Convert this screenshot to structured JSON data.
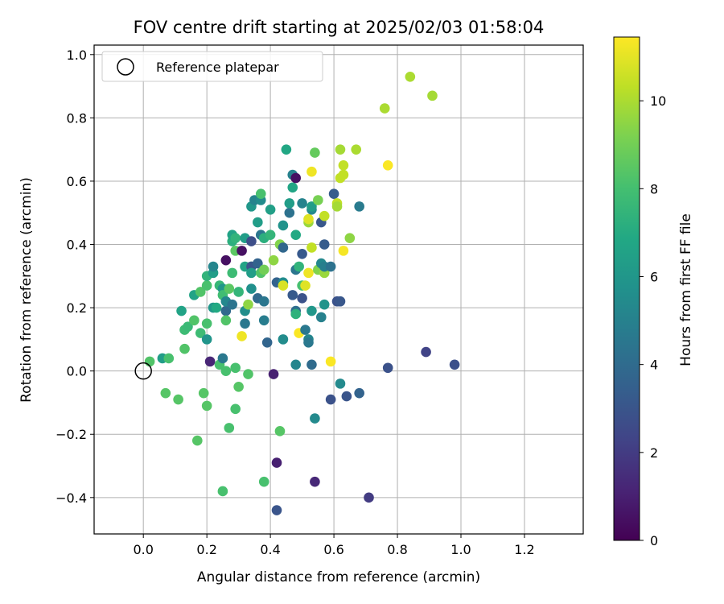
{
  "chart_data": {
    "type": "scatter",
    "title": "FOV centre drift starting at 2025/02/03 01:58:04",
    "xlabel": "Angular distance from reference (arcmin)",
    "ylabel": "Rotation from reference (arcmin)",
    "xlim": [
      -0.155,
      1.385
    ],
    "ylim": [
      -0.515,
      1.03
    ],
    "xticks": [
      "0.0",
      "0.2",
      "0.4",
      "0.6",
      "0.8",
      "1.0",
      "1.2"
    ],
    "yticks": [
      "−0.4",
      "−0.2",
      "0.0",
      "0.2",
      "0.4",
      "0.6",
      "0.8",
      "1.0"
    ],
    "grid": true,
    "legend": {
      "position": "upper-left",
      "entries": [
        "Reference platepar"
      ]
    },
    "reference_point": {
      "x": 0.0,
      "y": 0.0
    },
    "colorbar": {
      "label": "Hours from first FF file",
      "colormap": "viridis",
      "range": [
        0,
        11.45
      ],
      "ticks": [
        "0",
        "2",
        "4",
        "6",
        "8",
        "10"
      ]
    },
    "points": [
      {
        "x": 0.02,
        "y": 0.03,
        "h": 8.3
      },
      {
        "x": 0.06,
        "y": 0.04,
        "h": 6.3
      },
      {
        "x": 0.08,
        "y": 0.04,
        "h": 8.1
      },
      {
        "x": 0.07,
        "y": -0.07,
        "h": 8.4
      },
      {
        "x": 0.11,
        "y": -0.09,
        "h": 8.4
      },
      {
        "x": 0.13,
        "y": 0.07,
        "h": 8.3
      },
      {
        "x": 0.12,
        "y": 0.19,
        "h": 6.6
      },
      {
        "x": 0.13,
        "y": 0.13,
        "h": 7.8
      },
      {
        "x": 0.14,
        "y": 0.14,
        "h": 7.7
      },
      {
        "x": 0.16,
        "y": 0.24,
        "h": 6.6
      },
      {
        "x": 0.16,
        "y": 0.16,
        "h": 8.3
      },
      {
        "x": 0.17,
        "y": -0.22,
        "h": 8.4
      },
      {
        "x": 0.18,
        "y": 0.25,
        "h": 8.3
      },
      {
        "x": 0.18,
        "y": 0.12,
        "h": 7.8
      },
      {
        "x": 0.19,
        "y": -0.07,
        "h": 8.4
      },
      {
        "x": 0.2,
        "y": -0.11,
        "h": 8.4
      },
      {
        "x": 0.2,
        "y": 0.1,
        "h": 5.9
      },
      {
        "x": 0.2,
        "y": 0.15,
        "h": 8.1
      },
      {
        "x": 0.2,
        "y": 0.27,
        "h": 8.1
      },
      {
        "x": 0.2,
        "y": 0.3,
        "h": 7.4
      },
      {
        "x": 0.21,
        "y": 0.03,
        "h": 1.2
      },
      {
        "x": 0.22,
        "y": 0.2,
        "h": 6.0
      },
      {
        "x": 0.22,
        "y": 0.31,
        "h": 6.3
      },
      {
        "x": 0.22,
        "y": 0.33,
        "h": 5.2
      },
      {
        "x": 0.23,
        "y": 0.2,
        "h": 6.9
      },
      {
        "x": 0.24,
        "y": 0.27,
        "h": 7.6
      },
      {
        "x": 0.24,
        "y": 0.02,
        "h": 8.1
      },
      {
        "x": 0.25,
        "y": 0.04,
        "h": 4.6
      },
      {
        "x": 0.25,
        "y": 0.26,
        "h": 6.0
      },
      {
        "x": 0.25,
        "y": 0.24,
        "h": 7.9
      },
      {
        "x": 0.25,
        "y": -0.38,
        "h": 8.1
      },
      {
        "x": 0.26,
        "y": 0.35,
        "h": 0.5
      },
      {
        "x": 0.26,
        "y": 0.19,
        "h": 3.9
      },
      {
        "x": 0.26,
        "y": 0.22,
        "h": 5.3
      },
      {
        "x": 0.26,
        "y": 0.16,
        "h": 8.3
      },
      {
        "x": 0.26,
        "y": 0.0,
        "h": 8.1
      },
      {
        "x": 0.27,
        "y": -0.18,
        "h": 8.1
      },
      {
        "x": 0.27,
        "y": 0.26,
        "h": 8.5
      },
      {
        "x": 0.28,
        "y": 0.41,
        "h": 7.2
      },
      {
        "x": 0.28,
        "y": 0.43,
        "h": 6.6
      },
      {
        "x": 0.28,
        "y": 0.31,
        "h": 7.8
      },
      {
        "x": 0.28,
        "y": 0.21,
        "h": 4.4
      },
      {
        "x": 0.29,
        "y": 0.38,
        "h": 8.5
      },
      {
        "x": 0.29,
        "y": 0.42,
        "h": 7.4
      },
      {
        "x": 0.29,
        "y": 0.01,
        "h": 8.1
      },
      {
        "x": 0.29,
        "y": -0.12,
        "h": 8.1
      },
      {
        "x": 0.3,
        "y": 0.25,
        "h": 7.5
      },
      {
        "x": 0.3,
        "y": -0.05,
        "h": 8.4
      },
      {
        "x": 0.31,
        "y": 0.38,
        "h": 0.5
      },
      {
        "x": 0.31,
        "y": 0.11,
        "h": 11.2
      },
      {
        "x": 0.32,
        "y": 0.15,
        "h": 4.6
      },
      {
        "x": 0.32,
        "y": 0.19,
        "h": 5.6
      },
      {
        "x": 0.32,
        "y": 0.33,
        "h": 6.6
      },
      {
        "x": 0.32,
        "y": 0.42,
        "h": 6.3
      },
      {
        "x": 0.33,
        "y": 0.21,
        "h": 9.5
      },
      {
        "x": 0.33,
        "y": -0.01,
        "h": 8.3
      },
      {
        "x": 0.34,
        "y": 0.41,
        "h": 2.7
      },
      {
        "x": 0.34,
        "y": 0.33,
        "h": 7.8
      },
      {
        "x": 0.34,
        "y": 0.33,
        "h": 3.0
      },
      {
        "x": 0.34,
        "y": 0.52,
        "h": 6.0
      },
      {
        "x": 0.34,
        "y": 0.31,
        "h": 6.3
      },
      {
        "x": 0.34,
        "y": 0.26,
        "h": 5.7
      },
      {
        "x": 0.35,
        "y": 0.54,
        "h": 5.1
      },
      {
        "x": 0.36,
        "y": 0.47,
        "h": 6.3
      },
      {
        "x": 0.36,
        "y": 0.23,
        "h": 3.9
      },
      {
        "x": 0.36,
        "y": 0.34,
        "h": 3.6
      },
      {
        "x": 0.37,
        "y": 0.43,
        "h": 4.5
      },
      {
        "x": 0.37,
        "y": 0.31,
        "h": 8.3
      },
      {
        "x": 0.37,
        "y": 0.54,
        "h": 5.5
      },
      {
        "x": 0.37,
        "y": 0.56,
        "h": 8.1
      },
      {
        "x": 0.38,
        "y": 0.42,
        "h": 7.2
      },
      {
        "x": 0.38,
        "y": 0.22,
        "h": 4.5
      },
      {
        "x": 0.38,
        "y": 0.16,
        "h": 4.8
      },
      {
        "x": 0.38,
        "y": 0.32,
        "h": 9.0
      },
      {
        "x": 0.38,
        "y": -0.35,
        "h": 8.1
      },
      {
        "x": 0.39,
        "y": 0.09,
        "h": 3.7
      },
      {
        "x": 0.4,
        "y": 0.51,
        "h": 6.4
      },
      {
        "x": 0.4,
        "y": 0.43,
        "h": 7.5
      },
      {
        "x": 0.41,
        "y": 0.35,
        "h": 9.5
      },
      {
        "x": 0.41,
        "y": -0.01,
        "h": 1.0
      },
      {
        "x": 0.42,
        "y": -0.29,
        "h": 1.0
      },
      {
        "x": 0.42,
        "y": -0.44,
        "h": 3.0
      },
      {
        "x": 0.42,
        "y": 0.28,
        "h": 3.6
      },
      {
        "x": 0.43,
        "y": 0.4,
        "h": 9.3
      },
      {
        "x": 0.43,
        "y": -0.19,
        "h": 8.4
      },
      {
        "x": 0.44,
        "y": 0.28,
        "h": 5.5
      },
      {
        "x": 0.44,
        "y": 0.27,
        "h": 10.8
      },
      {
        "x": 0.44,
        "y": 0.1,
        "h": 5.5
      },
      {
        "x": 0.44,
        "y": 0.46,
        "h": 5.8
      },
      {
        "x": 0.44,
        "y": 0.39,
        "h": 3.8
      },
      {
        "x": 0.45,
        "y": 0.7,
        "h": 6.8
      },
      {
        "x": 0.46,
        "y": 0.5,
        "h": 4.3
      },
      {
        "x": 0.46,
        "y": 0.53,
        "h": 6.3
      },
      {
        "x": 0.47,
        "y": 0.58,
        "h": 6.7
      },
      {
        "x": 0.47,
        "y": 0.24,
        "h": 3.2
      },
      {
        "x": 0.47,
        "y": 0.62,
        "h": 5.0
      },
      {
        "x": 0.48,
        "y": 0.61,
        "h": 0.5
      },
      {
        "x": 0.48,
        "y": 0.43,
        "h": 6.9
      },
      {
        "x": 0.48,
        "y": 0.32,
        "h": 4.5
      },
      {
        "x": 0.48,
        "y": 0.19,
        "h": 4.1
      },
      {
        "x": 0.48,
        "y": 0.18,
        "h": 7.3
      },
      {
        "x": 0.48,
        "y": 0.02,
        "h": 5.2
      },
      {
        "x": 0.49,
        "y": 0.12,
        "h": 11.4
      },
      {
        "x": 0.49,
        "y": 0.33,
        "h": 7.4
      },
      {
        "x": 0.5,
        "y": 0.37,
        "h": 3.2
      },
      {
        "x": 0.5,
        "y": 0.23,
        "h": 2.9
      },
      {
        "x": 0.5,
        "y": 0.27,
        "h": 8.1
      },
      {
        "x": 0.5,
        "y": 0.53,
        "h": 5.1
      },
      {
        "x": 0.51,
        "y": 0.27,
        "h": 10.9
      },
      {
        "x": 0.51,
        "y": 0.13,
        "h": 4.6
      },
      {
        "x": 0.52,
        "y": 0.1,
        "h": 5.2
      },
      {
        "x": 0.52,
        "y": 0.31,
        "h": 11.2
      },
      {
        "x": 0.52,
        "y": 0.47,
        "h": 9.7
      },
      {
        "x": 0.52,
        "y": 0.48,
        "h": 10.9
      },
      {
        "x": 0.52,
        "y": 0.09,
        "h": 4.6
      },
      {
        "x": 0.53,
        "y": 0.19,
        "h": 6.0
      },
      {
        "x": 0.53,
        "y": 0.51,
        "h": 5.4
      },
      {
        "x": 0.53,
        "y": 0.52,
        "h": 6.3
      },
      {
        "x": 0.53,
        "y": 0.63,
        "h": 11.2
      },
      {
        "x": 0.53,
        "y": 0.39,
        "h": 10.4
      },
      {
        "x": 0.53,
        "y": 0.02,
        "h": 4.0
      },
      {
        "x": 0.54,
        "y": 0.69,
        "h": 8.7
      },
      {
        "x": 0.54,
        "y": -0.15,
        "h": 5.4
      },
      {
        "x": 0.54,
        "y": -0.35,
        "h": 1.3
      },
      {
        "x": 0.55,
        "y": 0.54,
        "h": 9.1
      },
      {
        "x": 0.55,
        "y": 0.32,
        "h": 9.3
      },
      {
        "x": 0.56,
        "y": 0.17,
        "h": 5.0
      },
      {
        "x": 0.56,
        "y": 0.47,
        "h": 3.1
      },
      {
        "x": 0.56,
        "y": 0.34,
        "h": 5.3
      },
      {
        "x": 0.57,
        "y": 0.4,
        "h": 3.3
      },
      {
        "x": 0.57,
        "y": 0.49,
        "h": 10.4
      },
      {
        "x": 0.57,
        "y": 0.31,
        "h": 9.7
      },
      {
        "x": 0.57,
        "y": 0.21,
        "h": 5.8
      },
      {
        "x": 0.57,
        "y": 0.33,
        "h": 4.9
      },
      {
        "x": 0.59,
        "y": 0.03,
        "h": 11.4
      },
      {
        "x": 0.59,
        "y": -0.09,
        "h": 2.9
      },
      {
        "x": 0.59,
        "y": 0.33,
        "h": 4.3
      },
      {
        "x": 0.6,
        "y": 0.56,
        "h": 3.3
      },
      {
        "x": 0.61,
        "y": 0.22,
        "h": 2.9
      },
      {
        "x": 0.61,
        "y": 0.53,
        "h": 10.4
      },
      {
        "x": 0.61,
        "y": 0.52,
        "h": 9.9
      },
      {
        "x": 0.62,
        "y": -0.04,
        "h": 5.4
      },
      {
        "x": 0.62,
        "y": 0.22,
        "h": 3.1
      },
      {
        "x": 0.62,
        "y": 0.61,
        "h": 10.4
      },
      {
        "x": 0.62,
        "y": 0.7,
        "h": 9.9
      },
      {
        "x": 0.63,
        "y": 0.38,
        "h": 11.3
      },
      {
        "x": 0.63,
        "y": 0.62,
        "h": 10.4
      },
      {
        "x": 0.63,
        "y": 0.65,
        "h": 10.4
      },
      {
        "x": 0.64,
        "y": -0.08,
        "h": 3.0
      },
      {
        "x": 0.65,
        "y": 0.42,
        "h": 9.5
      },
      {
        "x": 0.67,
        "y": 0.7,
        "h": 10.0
      },
      {
        "x": 0.68,
        "y": 0.52,
        "h": 4.7
      },
      {
        "x": 0.68,
        "y": -0.07,
        "h": 3.6
      },
      {
        "x": 0.71,
        "y": -0.4,
        "h": 2.0
      },
      {
        "x": 0.76,
        "y": 0.83,
        "h": 10.0
      },
      {
        "x": 0.77,
        "y": 0.01,
        "h": 2.9
      },
      {
        "x": 0.77,
        "y": 0.65,
        "h": 11.4
      },
      {
        "x": 0.84,
        "y": 0.93,
        "h": 10.0
      },
      {
        "x": 0.89,
        "y": 0.06,
        "h": 2.3
      },
      {
        "x": 0.91,
        "y": 0.87,
        "h": 9.9
      },
      {
        "x": 0.98,
        "y": 0.02,
        "h": 2.8
      }
    ]
  }
}
